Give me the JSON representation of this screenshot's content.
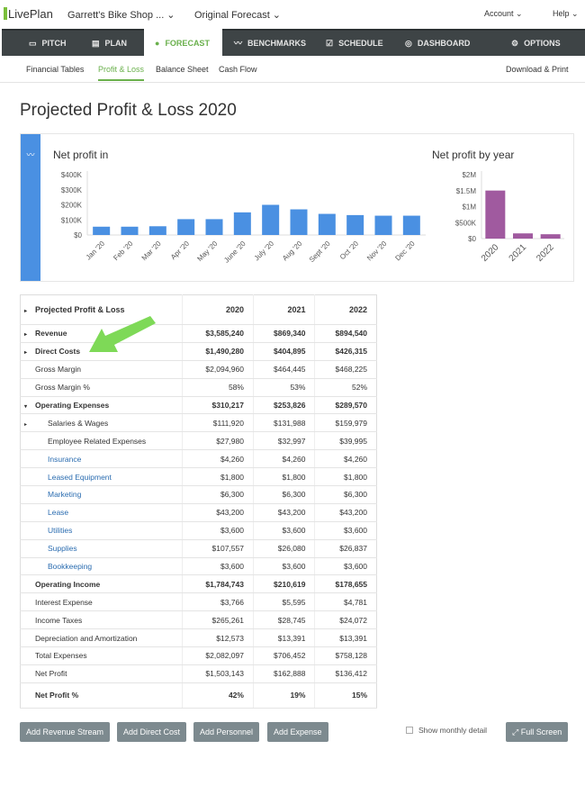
{
  "topbar": {
    "logo": "LivePlan",
    "company": "Garrett's Bike Shop ... ⌄",
    "forecast": "Original Forecast ⌄",
    "account": "Account ⌄",
    "help": "Help ⌄"
  },
  "nav": [
    {
      "label": "PITCH",
      "icon": "monitor-icon",
      "glyph": "▭"
    },
    {
      "label": "PLAN",
      "icon": "document-icon",
      "glyph": "▤"
    },
    {
      "label": "FORECAST",
      "icon": "forecast-icon",
      "glyph": "●"
    },
    {
      "label": "BENCHMARKS",
      "icon": "trend-icon",
      "glyph": "〰"
    },
    {
      "label": "SCHEDULE",
      "icon": "checkbox-icon",
      "glyph": "☑"
    },
    {
      "label": "DASHBOARD",
      "icon": "gauge-icon",
      "glyph": "◎"
    },
    {
      "label": "OPTIONS",
      "icon": "gear-icon",
      "glyph": "⚙"
    }
  ],
  "subnav": {
    "items": [
      "Financial Tables",
      "Profit & Loss",
      "Balance Sheet",
      "Cash Flow"
    ],
    "download": "Download & Print"
  },
  "page_title": "Projected Profit & Loss",
  "page_year": "2020",
  "chart_data": [
    {
      "type": "bar",
      "title": "Net profit in",
      "categories": [
        "Jan '20",
        "Feb '20",
        "Mar '20",
        "Apr '20",
        "May '20",
        "June '20",
        "July '20",
        "Aug '20",
        "Sept '20",
        "Oct '20",
        "Nov '20",
        "Dec '20"
      ],
      "values": [
        55000,
        55000,
        58000,
        105000,
        105000,
        150000,
        200000,
        170000,
        140000,
        132000,
        128000,
        128000
      ],
      "ylim": [
        0,
        400000
      ],
      "yticks": [
        "$0",
        "$100K",
        "$200K",
        "$300K",
        "$400K"
      ],
      "color": "#4a90e2"
    },
    {
      "type": "bar",
      "title": "Net profit by year",
      "categories": [
        "2020",
        "2021",
        "2022"
      ],
      "values": [
        1503143,
        162888,
        136412
      ],
      "ylim": [
        0,
        2000000
      ],
      "yticks": [
        "$0",
        "$500K",
        "$1M",
        "$1.5M",
        "$2M"
      ],
      "color": "#a05a9f"
    }
  ],
  "table": {
    "header": [
      "Projected Profit & Loss",
      "2020",
      "2021",
      "2022"
    ],
    "rows": [
      {
        "label": "Revenue",
        "v": [
          "$3,585,240",
          "$869,340",
          "$894,540"
        ],
        "bold": true,
        "arrow": "▸"
      },
      {
        "label": "Direct Costs",
        "v": [
          "$1,490,280",
          "$404,895",
          "$426,315"
        ],
        "bold": true,
        "arrow": "▸"
      },
      {
        "label": "Gross Margin",
        "v": [
          "$2,094,960",
          "$464,445",
          "$468,225"
        ]
      },
      {
        "label": "Gross Margin %",
        "v": [
          "58%",
          "53%",
          "52%"
        ]
      },
      {
        "label": "Operating Expenses",
        "v": [
          "$310,217",
          "$253,826",
          "$289,570"
        ],
        "bold": true,
        "arrow": "▾"
      },
      {
        "label": "Salaries & Wages",
        "v": [
          "$111,920",
          "$131,988",
          "$159,979"
        ],
        "indent": true,
        "arrow": "▸"
      },
      {
        "label": "Employee Related Expenses",
        "v": [
          "$27,980",
          "$32,997",
          "$39,995"
        ],
        "indent": true
      },
      {
        "label": "Insurance",
        "v": [
          "$4,260",
          "$4,260",
          "$4,260"
        ],
        "indent": true,
        "link": true
      },
      {
        "label": "Leased Equipment",
        "v": [
          "$1,800",
          "$1,800",
          "$1,800"
        ],
        "indent": true,
        "link": true
      },
      {
        "label": "Marketing",
        "v": [
          "$6,300",
          "$6,300",
          "$6,300"
        ],
        "indent": true,
        "link": true
      },
      {
        "label": "Lease",
        "v": [
          "$43,200",
          "$43,200",
          "$43,200"
        ],
        "indent": true,
        "link": true
      },
      {
        "label": "Utilities",
        "v": [
          "$3,600",
          "$3,600",
          "$3,600"
        ],
        "indent": true,
        "link": true
      },
      {
        "label": "Supplies",
        "v": [
          "$107,557",
          "$26,080",
          "$26,837"
        ],
        "indent": true,
        "link": true
      },
      {
        "label": "Bookkeeping",
        "v": [
          "$3,600",
          "$3,600",
          "$3,600"
        ],
        "indent": true,
        "link": true
      },
      {
        "label": "Operating Income",
        "v": [
          "$1,784,743",
          "$210,619",
          "$178,655"
        ],
        "bold": true
      },
      {
        "label": "Interest Expense",
        "v": [
          "$3,766",
          "$5,595",
          "$4,781"
        ]
      },
      {
        "label": "Income Taxes",
        "v": [
          "$265,261",
          "$28,745",
          "$24,072"
        ]
      },
      {
        "label": "Depreciation and Amortization",
        "v": [
          "$12,573",
          "$13,391",
          "$13,391"
        ]
      },
      {
        "label": "Total Expenses",
        "v": [
          "$2,082,097",
          "$706,452",
          "$758,128"
        ]
      },
      {
        "label": "Net Profit",
        "v": [
          "$1,503,143",
          "$162,888",
          "$136,412"
        ]
      },
      {
        "label": "Net Profit %",
        "v": [
          "42%",
          "19%",
          "15%"
        ],
        "bold": true
      }
    ]
  },
  "buttons": [
    "Add Revenue Stream",
    "Add Direct Cost",
    "Add Personnel",
    "Add Expense"
  ],
  "show_monthly": "Show monthly detail",
  "full_screen": "⤢ Full Screen"
}
